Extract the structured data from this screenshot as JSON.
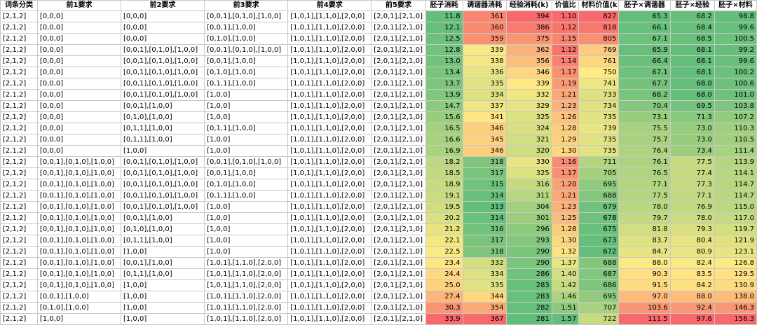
{
  "headers": [
    "词条分类",
    "前1要求",
    "前2要求",
    "前3要求",
    "前4要求",
    "前5要求",
    "胚子消耗",
    "调谐器消耗",
    "经验消耗(k)",
    "价值比",
    "材料价值(k)",
    "胚子×调谐器",
    "胚子×经验",
    "胚子×材料"
  ],
  "colors": {
    "green": "#63be7b",
    "yellow": "#ffeb84",
    "red": "#f8696b",
    "grid": "#c8c8c8"
  },
  "rows": [
    [
      "[2,1,2]",
      "[0,0,0]",
      "[0,0,0]",
      "[0,0,1],[0,1,0],[1,0,0]",
      "[1,0,1],[1,1,0],[2,0,0]",
      "[2,0,1],[2,1,0]",
      "11.8",
      "361",
      "394",
      "1.10",
      "827",
      "65.3",
      "68.2",
      "98.8"
    ],
    [
      "[2,1,2]",
      "[0,0,0]",
      "[0,0,0]",
      "[0,0,1],[1,0,0]",
      "[1,0,1],[1,1,0],[2,0,0]",
      "[2,0,1],[2,1,0]",
      "12.1",
      "360",
      "386",
      "1.12",
      "818",
      "66.1",
      "68.4",
      "99.6"
    ],
    [
      "[2,1,2]",
      "[0,0,0]",
      "[0,0,0]",
      "[0,1,0],[1,0,0]",
      "[1,0,1],[1,1,0],[2,0,0]",
      "[2,0,1],[2,1,0]",
      "12.5",
      "359",
      "375",
      "1.15",
      "805",
      "67.1",
      "68.5",
      "100.5"
    ],
    [
      "[2,1,2]",
      "[0,0,0]",
      "[0,0,1],[0,1,0],[1,0,0]",
      "[0,0,1],[0,1,0],[1,0,0]",
      "[1,0,1],[1,1,0],[2,0,0]",
      "[2,0,1],[2,1,0]",
      "12.8",
      "339",
      "362",
      "1.12",
      "769",
      "65.9",
      "68.1",
      "99.2"
    ],
    [
      "[2,1,2]",
      "[0,0,0]",
      "[0,0,1],[0,1,0],[1,0,0]",
      "[0,0,1],[1,0,0]",
      "[1,0,1],[1,1,0],[2,0,0]",
      "[2,0,1],[2,1,0]",
      "13.0",
      "338",
      "356",
      "1.14",
      "761",
      "66.4",
      "68.1",
      "99.6"
    ],
    [
      "[2,1,2]",
      "[0,0,0]",
      "[0,0,1],[0,1,0],[1,0,0]",
      "[0,1,0],[1,0,0]",
      "[1,0,1],[1,1,0],[2,0,0]",
      "[2,0,1],[2,1,0]",
      "13.4",
      "336",
      "346",
      "1.17",
      "750",
      "67.1",
      "68.1",
      "100.2"
    ],
    [
      "[2,1,2]",
      "[0,0,0]",
      "[0,0,1],[0,1,0],[1,0,0]",
      "[0,1,1],[1,0,0]",
      "[1,0,1],[1,1,0],[2,0,0]",
      "[2,0,1],[2,1,0]",
      "13.7",
      "335",
      "339",
      "1.19",
      "741",
      "67.7",
      "68.0",
      "100.6"
    ],
    [
      "[2,1,2]",
      "[0,0,0]",
      "[0,0,1],[0,1,0],[1,0,0]",
      "[1,0,0]",
      "[1,0,1],[1,1,0],[2,0,0]",
      "[2,0,1],[2,1,0]",
      "13.9",
      "334",
      "332",
      "1.21",
      "733",
      "68.2",
      "68.0",
      "101.0"
    ],
    [
      "[2,1,2]",
      "[0,0,0]",
      "[0,0,1],[1,0,0]",
      "[1,0,0]",
      "[1,0,1],[1,1,0],[2,0,0]",
      "[2,0,1],[2,1,0]",
      "14.7",
      "337",
      "329",
      "1.23",
      "734",
      "70.4",
      "69.5",
      "103.8"
    ],
    [
      "[2,1,2]",
      "[0,0,0]",
      "[0,1,0],[1,0,0]",
      "[1,0,0]",
      "[1,0,1],[1,1,0],[2,0,0]",
      "[2,0,1],[2,1,0]",
      "15.6",
      "341",
      "325",
      "1.26",
      "735",
      "73.1",
      "71.3",
      "107.2"
    ],
    [
      "[2,1,2]",
      "[0,0,0]",
      "[0,1,1],[1,0,0]",
      "[0,1,1],[1,0,0]",
      "[1,0,1],[1,1,0],[2,0,0]",
      "[2,0,1],[2,1,0]",
      "16.5",
      "346",
      "324",
      "1.28",
      "739",
      "75.5",
      "73.0",
      "110.3"
    ],
    [
      "[2,1,2]",
      "[0,0,0]",
      "[0,1,1],[1,0,0]",
      "[1,0,0]",
      "[1,0,1],[1,1,0],[2,0,0]",
      "[2,0,1],[2,1,0]",
      "16.6",
      "345",
      "321",
      "1.29",
      "735",
      "75.7",
      "73.0",
      "110.5"
    ],
    [
      "[2,1,2]",
      "[0,0,0]",
      "[1,0,0]",
      "[1,0,0]",
      "[1,0,1],[1,1,0],[2,0,0]",
      "[2,0,1],[2,1,0]",
      "16.9",
      "346",
      "320",
      "1.30",
      "735",
      "76.4",
      "73.4",
      "111.4"
    ],
    [
      "[2,1,2]",
      "[0,0,1],[0,1,0],[1,0,0]",
      "[0,0,1],[0,1,0],[1,0,0]",
      "[0,0,1],[0,1,0],[1,0,0]",
      "[1,0,1],[1,1,0],[2,0,0]",
      "[2,0,1],[2,1,0]",
      "18.2",
      "318",
      "330",
      "1.16",
      "711",
      "76.1",
      "77.5",
      "113.9"
    ],
    [
      "[2,1,2]",
      "[0,0,1],[0,1,0],[1,0,0]",
      "[0,0,1],[0,1,0],[1,0,0]",
      "[0,0,1],[1,0,0]",
      "[1,0,1],[1,1,0],[2,0,0]",
      "[2,0,1],[2,1,0]",
      "18.5",
      "317",
      "325",
      "1.17",
      "705",
      "76.5",
      "77.4",
      "114.1"
    ],
    [
      "[2,1,2]",
      "[0,0,1],[0,1,0],[1,0,0]",
      "[0,0,1],[0,1,0],[1,0,0]",
      "[0,1,0],[1,0,0]",
      "[1,0,1],[1,1,0],[2,0,0]",
      "[2,0,1],[2,1,0]",
      "18.9",
      "315",
      "316",
      "1.20",
      "695",
      "77.1",
      "77.3",
      "114.7"
    ],
    [
      "[2,1,2]",
      "[0,0,1],[0,1,0],[1,0,0]",
      "[0,0,1],[0,1,0],[1,0,0]",
      "[0,1,1],[1,0,0]",
      "[1,0,1],[1,1,0],[2,0,0]",
      "[2,0,1],[2,1,0]",
      "19.1",
      "314",
      "311",
      "1.21",
      "688",
      "77.5",
      "77.1",
      "114.7"
    ],
    [
      "[2,1,2]",
      "[0,0,1],[0,1,0],[1,0,0]",
      "[0,0,1],[0,1,0],[1,0,0]",
      "[1,0,0]",
      "[1,0,1],[1,1,0],[2,0,0]",
      "[2,0,1],[2,1,0]",
      "19.5",
      "313",
      "304",
      "1.23",
      "679",
      "78.0",
      "76.9",
      "115.0"
    ],
    [
      "[2,1,2]",
      "[0,0,1],[0,1,0],[1,0,0]",
      "[0,0,1],[1,0,0]",
      "[1,0,0]",
      "[1,0,1],[1,1,0],[2,0,0]",
      "[2,0,1],[2,1,0]",
      "20.2",
      "314",
      "301",
      "1.25",
      "678",
      "79.7",
      "78.0",
      "117.0"
    ],
    [
      "[2,1,2]",
      "[0,0,1],[0,1,0],[1,0,0]",
      "[0,1,0],[1,0,0]",
      "[1,0,0]",
      "[1,0,1],[1,1,0],[2,0,0]",
      "[2,0,1],[2,1,0]",
      "21.2",
      "316",
      "296",
      "1.28",
      "675",
      "81.8",
      "79.3",
      "119.7"
    ],
    [
      "[2,1,2]",
      "[0,0,1],[0,1,0],[1,0,0]",
      "[0,1,1],[1,0,0]",
      "[1,0,0]",
      "[1,0,1],[1,1,0],[2,0,0]",
      "[2,0,1],[2,1,0]",
      "22.1",
      "317",
      "293",
      "1.30",
      "673",
      "83.7",
      "80.4",
      "121.9"
    ],
    [
      "[2,1,2]",
      "[0,0,1],[0,1,0],[1,0,0]",
      "[1,0,0]",
      "[1,0,0]",
      "[1,0,1],[1,1,0],[2,0,0]",
      "[2,0,1],[2,1,0]",
      "22.5",
      "318",
      "290",
      "1.32",
      "672",
      "84.7",
      "80.9",
      "123.1"
    ],
    [
      "[2,1,2]",
      "[0,0,1],[0,1,0],[1,0,0]",
      "[0,0,1],[1,0,0]",
      "[1,0,1],[1,1,0],[2,0,0]",
      "[1,0,1],[1,1,0],[2,0,0]",
      "[2,0,1],[2,1,0]",
      "23.4",
      "332",
      "290",
      "1.37",
      "688",
      "88.0",
      "82.4",
      "126.8"
    ],
    [
      "[2,1,2]",
      "[0,0,1],[0,1,0],[1,0,0]",
      "[0,1,1],[1,0,0]",
      "[1,0,1],[1,1,0],[2,0,0]",
      "[1,0,1],[1,1,0],[2,0,0]",
      "[2,0,1],[2,1,0]",
      "24.4",
      "334",
      "286",
      "1.40",
      "687",
      "90.3",
      "83.5",
      "129.5"
    ],
    [
      "[2,1,2]",
      "[0,0,1],[0,1,0],[1,0,0]",
      "[1,0,0]",
      "[1,0,1],[1,1,0],[2,0,0]",
      "[1,0,1],[1,1,0],[2,0,0]",
      "[2,0,1],[2,1,0]",
      "25.0",
      "335",
      "283",
      "1.42",
      "686",
      "91.5",
      "84.2",
      "130.9"
    ],
    [
      "[2,1,2]",
      "[0,0,1],[1,0,0]",
      "[1,0,0]",
      "[1,0,1],[1,1,0],[2,0,0]",
      "[1,0,1],[1,1,0],[2,0,0]",
      "[2,0,1],[2,1,0]",
      "27.4",
      "344",
      "283",
      "1.46",
      "695",
      "97.0",
      "88.0",
      "138.0"
    ],
    [
      "[2,1,2]",
      "[0,1,0],[1,0,0]",
      "[1,0,0]",
      "[1,0,1],[1,1,0],[2,0,0]",
      "[1,0,1],[1,1,0],[2,0,0]",
      "[2,0,1],[2,1,0]",
      "30.3",
      "354",
      "282",
      "1.51",
      "707",
      "103.6",
      "92.4",
      "146.3"
    ],
    [
      "[2,1,2]",
      "[1,0,0]",
      "[1,0,0]",
      "[1,0,1],[1,1,0],[2,0,0]",
      "[1,0,1],[1,1,0],[2,0,0]",
      "[2,0,1],[2,1,0]",
      "33.9",
      "367",
      "281",
      "1.57",
      "722",
      "111.5",
      "97.6",
      "156.3"
    ]
  ]
}
